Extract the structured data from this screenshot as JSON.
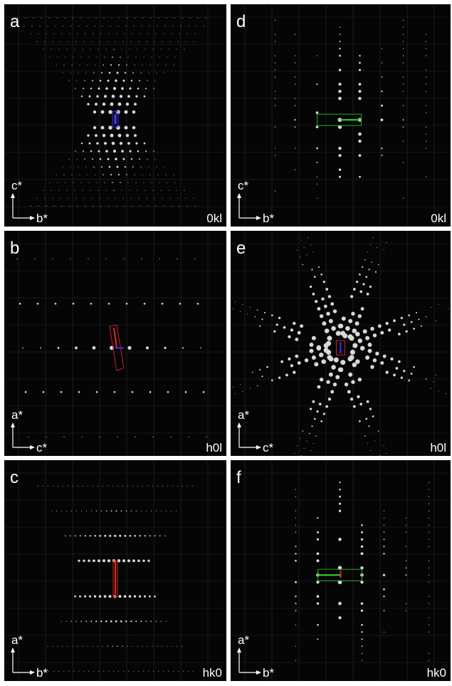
{
  "panels": [
    {
      "label": "a",
      "vertical_axis": "c*",
      "horizontal_axis": "b*",
      "zone": "0kl"
    },
    {
      "label": "d",
      "vertical_axis": "c*",
      "horizontal_axis": "b*",
      "zone": "0kl"
    },
    {
      "label": "b",
      "vertical_axis": "a*",
      "horizontal_axis": "c*",
      "zone": "h0l"
    },
    {
      "label": "e",
      "vertical_axis": "a*",
      "horizontal_axis": "c*",
      "zone": "h0l"
    },
    {
      "label": "c",
      "vertical_axis": "a*",
      "horizontal_axis": "b*",
      "zone": "hk0"
    },
    {
      "label": "f",
      "vertical_axis": "a*",
      "horizontal_axis": "b*",
      "zone": "hk0"
    }
  ]
}
